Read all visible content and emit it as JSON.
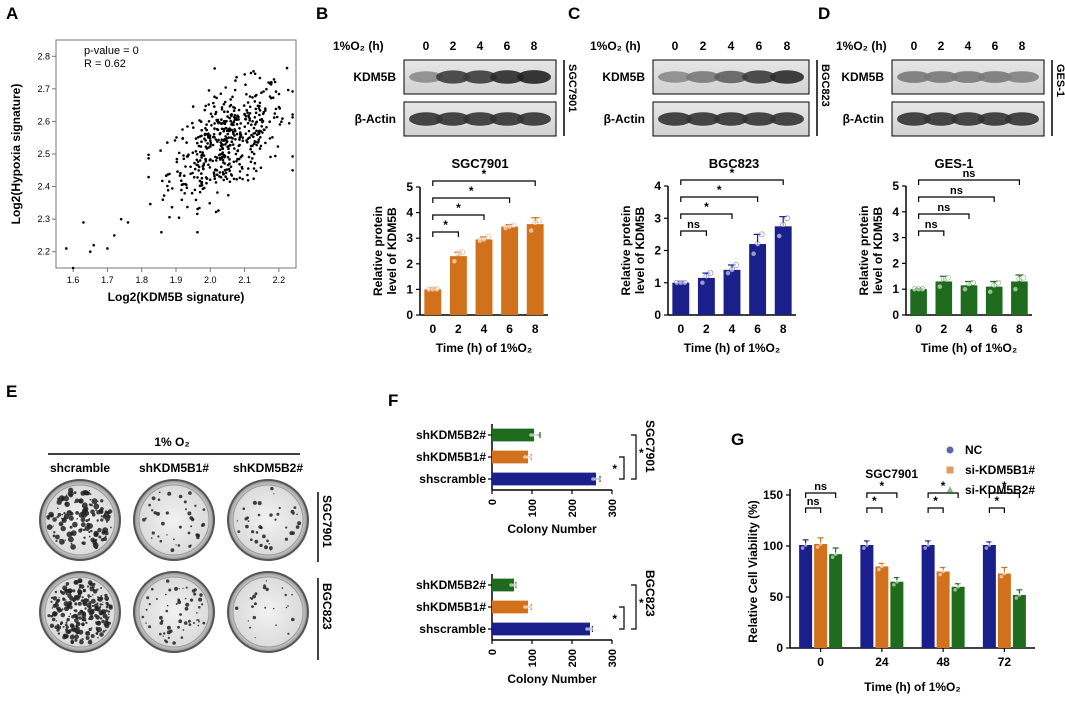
{
  "panel_letters": {
    "A": "A",
    "B": "B",
    "C": "C",
    "D": "D",
    "E": "E",
    "F": "F",
    "G": "G"
  },
  "colors": {
    "orange": "#D2711C",
    "navy": "#1B1F8C",
    "green": "#1E6B1E",
    "grey_fill": "#888888"
  },
  "western_blots": [
    {
      "id": "B",
      "cond_label": "1%O₂ (h)",
      "times": [
        "0",
        "2",
        "4",
        "6",
        "8"
      ],
      "band1": "KDM5B",
      "band2": "β-Actin",
      "cell_line": "SGC7901",
      "band_intensities": [
        0.35,
        0.8,
        0.8,
        0.9,
        0.95
      ]
    },
    {
      "id": "C",
      "cond_label": "1%O₂ (h)",
      "times": [
        "0",
        "2",
        "4",
        "6",
        "8"
      ],
      "band1": "KDM5B",
      "band2": "β-Actin",
      "cell_line": "BGC823",
      "band_intensities": [
        0.35,
        0.45,
        0.6,
        0.8,
        0.9
      ]
    },
    {
      "id": "D",
      "cond_label": "1%O₂ (h)",
      "times": [
        "0",
        "2",
        "4",
        "6",
        "8"
      ],
      "band1": "KDM5B",
      "band2": "β-Actin",
      "cell_line": "GES-1",
      "band_intensities": [
        0.45,
        0.45,
        0.45,
        0.45,
        0.4
      ]
    }
  ],
  "colony_panel": {
    "condition": "1% O₂",
    "groups": [
      "shcramble",
      "shKDM5B1#",
      "shKDM5B2#"
    ],
    "rows": [
      "SGC7901",
      "BGC823"
    ]
  },
  "chart_data": [
    {
      "id": "A",
      "type": "scatter",
      "xlabel": "Log2(KDM5B signature)",
      "ylabel": "Log2(Hypoxia signature)",
      "xlim": [
        1.55,
        2.25
      ],
      "ylim": [
        2.15,
        2.85
      ],
      "xticks": [
        "1.6",
        "1.7",
        "1.8",
        "1.9",
        "2.0",
        "2.1",
        "2.2"
      ],
      "yticks": [
        "2.2",
        "2.3",
        "2.4",
        "2.5",
        "2.6",
        "2.7",
        "2.8"
      ],
      "annotations": [
        "p-value = 0",
        "R = 0.62"
      ],
      "n_points": 500,
      "slope": 0.55,
      "intercept": 1.41,
      "noise_sd": 0.075,
      "x_mean": 2.05,
      "x_sd": 0.085,
      "outliers": [
        [
          1.58,
          2.21
        ],
        [
          1.6,
          2.15
        ],
        [
          1.63,
          2.29
        ],
        [
          1.65,
          2.2
        ],
        [
          1.66,
          2.22
        ],
        [
          1.7,
          2.21
        ],
        [
          1.72,
          2.25
        ],
        [
          1.74,
          2.3
        ],
        [
          1.76,
          2.29
        ]
      ]
    },
    {
      "id": "B",
      "type": "bar",
      "title": "SGC7901",
      "ylabel": "Relative protein level of KDM5B",
      "xlabel": "Time (h) of 1%O₂",
      "categories": [
        "0",
        "2",
        "4",
        "6",
        "8"
      ],
      "values": [
        1.0,
        2.3,
        2.95,
        3.45,
        3.55
      ],
      "errors": [
        0.05,
        0.15,
        0.1,
        0.08,
        0.25
      ],
      "points": [
        [
          1.0,
          1.0,
          1.0
        ],
        [
          2.1,
          2.4,
          2.45
        ],
        [
          2.9,
          2.95,
          3.05
        ],
        [
          3.4,
          3.45,
          3.5
        ],
        [
          3.3,
          3.6,
          3.7
        ]
      ],
      "ylim": [
        0,
        5
      ],
      "yticks": [
        "0",
        "1",
        "2",
        "3",
        "4",
        "5"
      ],
      "sig": [
        {
          "from": 0,
          "to": 1,
          "label": "*"
        },
        {
          "from": 0,
          "to": 2,
          "label": "*"
        },
        {
          "from": 0,
          "to": 3,
          "label": "*"
        },
        {
          "from": 0,
          "to": 4,
          "label": "*"
        }
      ]
    },
    {
      "id": "C",
      "type": "bar",
      "title": "BGC823",
      "ylabel": "Relative protein level of KDM5B",
      "xlabel": "Time (h) of 1%O₂",
      "categories": [
        "0",
        "2",
        "4",
        "6",
        "8"
      ],
      "values": [
        1.0,
        1.15,
        1.4,
        2.2,
        2.75
      ],
      "errors": [
        0.03,
        0.15,
        0.15,
        0.3,
        0.3
      ],
      "points": [
        [
          1.0,
          1.0,
          1.0
        ],
        [
          1.0,
          1.2,
          1.3
        ],
        [
          1.3,
          1.4,
          1.55
        ],
        [
          1.9,
          2.2,
          2.5
        ],
        [
          2.45,
          2.8,
          3.0
        ]
      ],
      "ylim": [
        0,
        4
      ],
      "yticks": [
        "0",
        "1",
        "2",
        "3",
        "4"
      ],
      "sig": [
        {
          "from": 0,
          "to": 1,
          "label": "ns"
        },
        {
          "from": 0,
          "to": 2,
          "label": "*"
        },
        {
          "from": 0,
          "to": 3,
          "label": "*"
        },
        {
          "from": 0,
          "to": 4,
          "label": "*"
        }
      ]
    },
    {
      "id": "D",
      "type": "bar",
      "title": "GES-1",
      "ylabel": "Relative protein level of KDM5B",
      "xlabel": "Time (h) of 1%O₂",
      "categories": [
        "0",
        "2",
        "4",
        "6",
        "8"
      ],
      "values": [
        1.0,
        1.3,
        1.15,
        1.1,
        1.3
      ],
      "errors": [
        0.03,
        0.2,
        0.15,
        0.2,
        0.25
      ],
      "points": [
        [
          1.0,
          1.0,
          1.0
        ],
        [
          1.1,
          1.4,
          1.45
        ],
        [
          1.0,
          1.2,
          1.25
        ],
        [
          0.9,
          1.15,
          1.25
        ],
        [
          1.0,
          1.4,
          1.45
        ]
      ],
      "ylim": [
        0,
        5
      ],
      "yticks": [
        "0",
        "1",
        "2",
        "3",
        "4",
        "5"
      ],
      "sig": [
        {
          "from": 0,
          "to": 1,
          "label": "ns"
        },
        {
          "from": 0,
          "to": 2,
          "label": "ns"
        },
        {
          "from": 0,
          "to": 3,
          "label": "ns"
        },
        {
          "from": 0,
          "to": 4,
          "label": "ns"
        }
      ]
    },
    {
      "id": "F-SGC7901",
      "type": "bar",
      "orientation": "horizontal",
      "cell_line": "SGC7901",
      "xlabel": "Colony Number",
      "categories": [
        "shKDM5B2#",
        "shKDM5B1#",
        "shscramble"
      ],
      "values": [
        105,
        90,
        260
      ],
      "errors": [
        15,
        8,
        10
      ],
      "xlim": [
        0,
        300
      ],
      "xticks": [
        "0",
        "100",
        "200",
        "300"
      ],
      "sig": [
        {
          "from": 1,
          "to": 2,
          "label": "*"
        },
        {
          "from": 0,
          "to": 2,
          "label": "*"
        }
      ]
    },
    {
      "id": "F-BGC823",
      "type": "bar",
      "orientation": "horizontal",
      "cell_line": "BGC823",
      "xlabel": "Colony Number",
      "categories": [
        "shKDM5B2#",
        "shKDM5B1#",
        "shscramble"
      ],
      "values": [
        55,
        90,
        245
      ],
      "errors": [
        5,
        8,
        6
      ],
      "xlim": [
        0,
        300
      ],
      "xticks": [
        "0",
        "100",
        "200",
        "300"
      ],
      "sig": [
        {
          "from": 1,
          "to": 2,
          "label": "*"
        },
        {
          "from": 0,
          "to": 2,
          "label": "*"
        }
      ]
    },
    {
      "id": "G",
      "type": "bar",
      "title": "SGC7901",
      "ylabel": "Relative Cell Viability (%)",
      "xlabel": "Time (h) of 1%O₂",
      "categories": [
        "0",
        "24",
        "48",
        "72"
      ],
      "series": [
        {
          "name": "NC",
          "values": [
            101,
            101,
            101,
            101
          ],
          "errors": [
            5,
            4,
            4,
            3
          ]
        },
        {
          "name": "si-KDM5B1#",
          "values": [
            102,
            80,
            75,
            73
          ],
          "errors": [
            6,
            3,
            4,
            6
          ]
        },
        {
          "name": "si-KDM5B2#",
          "values": [
            92,
            65,
            60,
            52
          ],
          "errors": [
            6,
            4,
            3,
            5
          ]
        }
      ],
      "ylim": [
        0,
        150
      ],
      "yticks": [
        "0",
        "50",
        "100",
        "150"
      ],
      "sig": [
        {
          "group": 0,
          "a": 0,
          "b": 1,
          "label": "ns"
        },
        {
          "group": 0,
          "a": 0,
          "b": 2,
          "label": "ns"
        },
        {
          "group": 1,
          "a": 0,
          "b": 1,
          "label": "*"
        },
        {
          "group": 1,
          "a": 0,
          "b": 2,
          "label": "*"
        },
        {
          "group": 2,
          "a": 0,
          "b": 1,
          "label": "*"
        },
        {
          "group": 2,
          "a": 0,
          "b": 2,
          "label": "*"
        },
        {
          "group": 3,
          "a": 0,
          "b": 1,
          "label": "*"
        },
        {
          "group": 3,
          "a": 0,
          "b": 2,
          "label": "*"
        }
      ]
    }
  ]
}
